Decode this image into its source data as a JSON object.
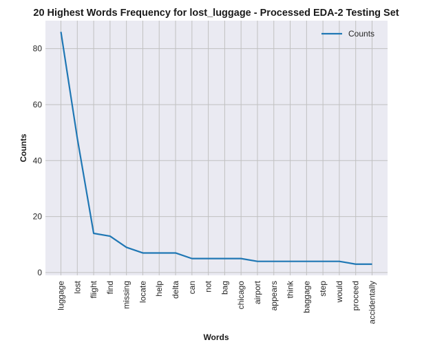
{
  "chart_data": {
    "type": "line",
    "title": "20 Highest Words Frequency for lost_luggage - Processed EDA-2 Testing Set",
    "xlabel": "Words",
    "ylabel": "Counts",
    "categories": [
      "luggage",
      "lost",
      "flight",
      "find",
      "missing",
      "locate",
      "help",
      "delta",
      "can",
      "not",
      "bag",
      "chicago",
      "airport",
      "appears",
      "think",
      "baggage",
      "step",
      "would",
      "proceed",
      "accidentally"
    ],
    "series": [
      {
        "name": "Counts",
        "values": [
          86,
          48,
          14,
          13,
          9,
          7,
          7,
          7,
          5,
          5,
          5,
          5,
          4,
          4,
          4,
          4,
          4,
          4,
          3,
          3
        ]
      }
    ],
    "ylim": [
      -1,
      90
    ],
    "yticks": [
      0,
      20,
      40,
      60,
      80
    ],
    "grid": true,
    "legend": "top-right",
    "colors": {
      "line": "#1f77b4",
      "background": "#eaeaf2",
      "grid": "#c0c0c0"
    }
  }
}
